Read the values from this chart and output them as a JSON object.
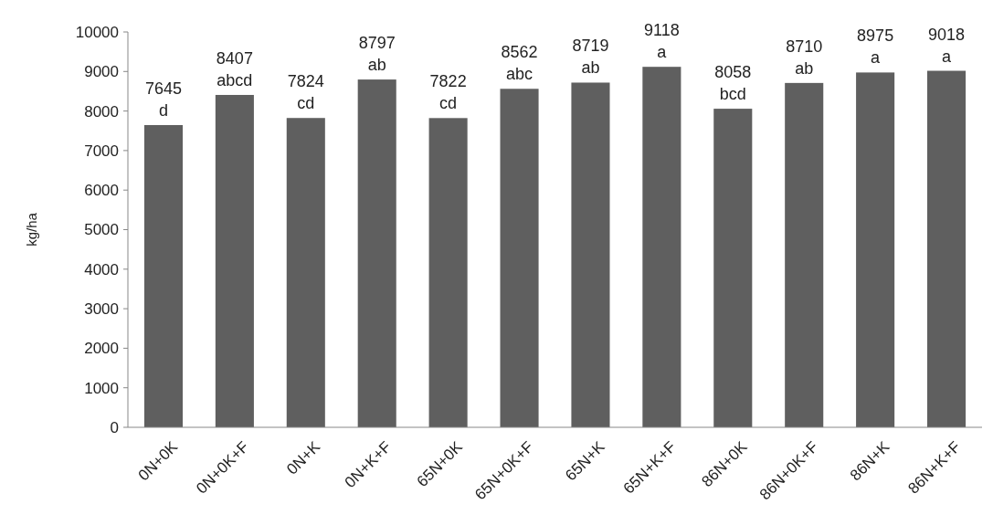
{
  "chart_data": {
    "type": "bar",
    "ylabel": "kg/ha",
    "categories": [
      "0N+0K",
      "0N+0K+F",
      "0N+K",
      "0N+K+F",
      "65N+0K",
      "65N+0K+F",
      "65N+K",
      "65N+K+F",
      "86N+0K",
      "86N+0K+F",
      "86N+K",
      "86N+K+F"
    ],
    "values": [
      7645,
      8407,
      7824,
      8797,
      7822,
      8562,
      8719,
      9118,
      8058,
      8710,
      8975,
      9018
    ],
    "value_labels": [
      "7645\nd",
      "8407\nabcd",
      "7824\ncd",
      "8797\nab",
      "7822\ncd",
      "8562\nabc",
      "8719\nab",
      "9118\na",
      "8058\nbcd",
      "8710\nab",
      "8975\na",
      "9018\na"
    ],
    "color": "#5f5f5f",
    "ylim": [
      0,
      10000
    ],
    "yticks": [
      0,
      1000,
      2000,
      3000,
      4000,
      5000,
      6000,
      7000,
      8000,
      9000,
      10000
    ],
    "grid": false
  }
}
